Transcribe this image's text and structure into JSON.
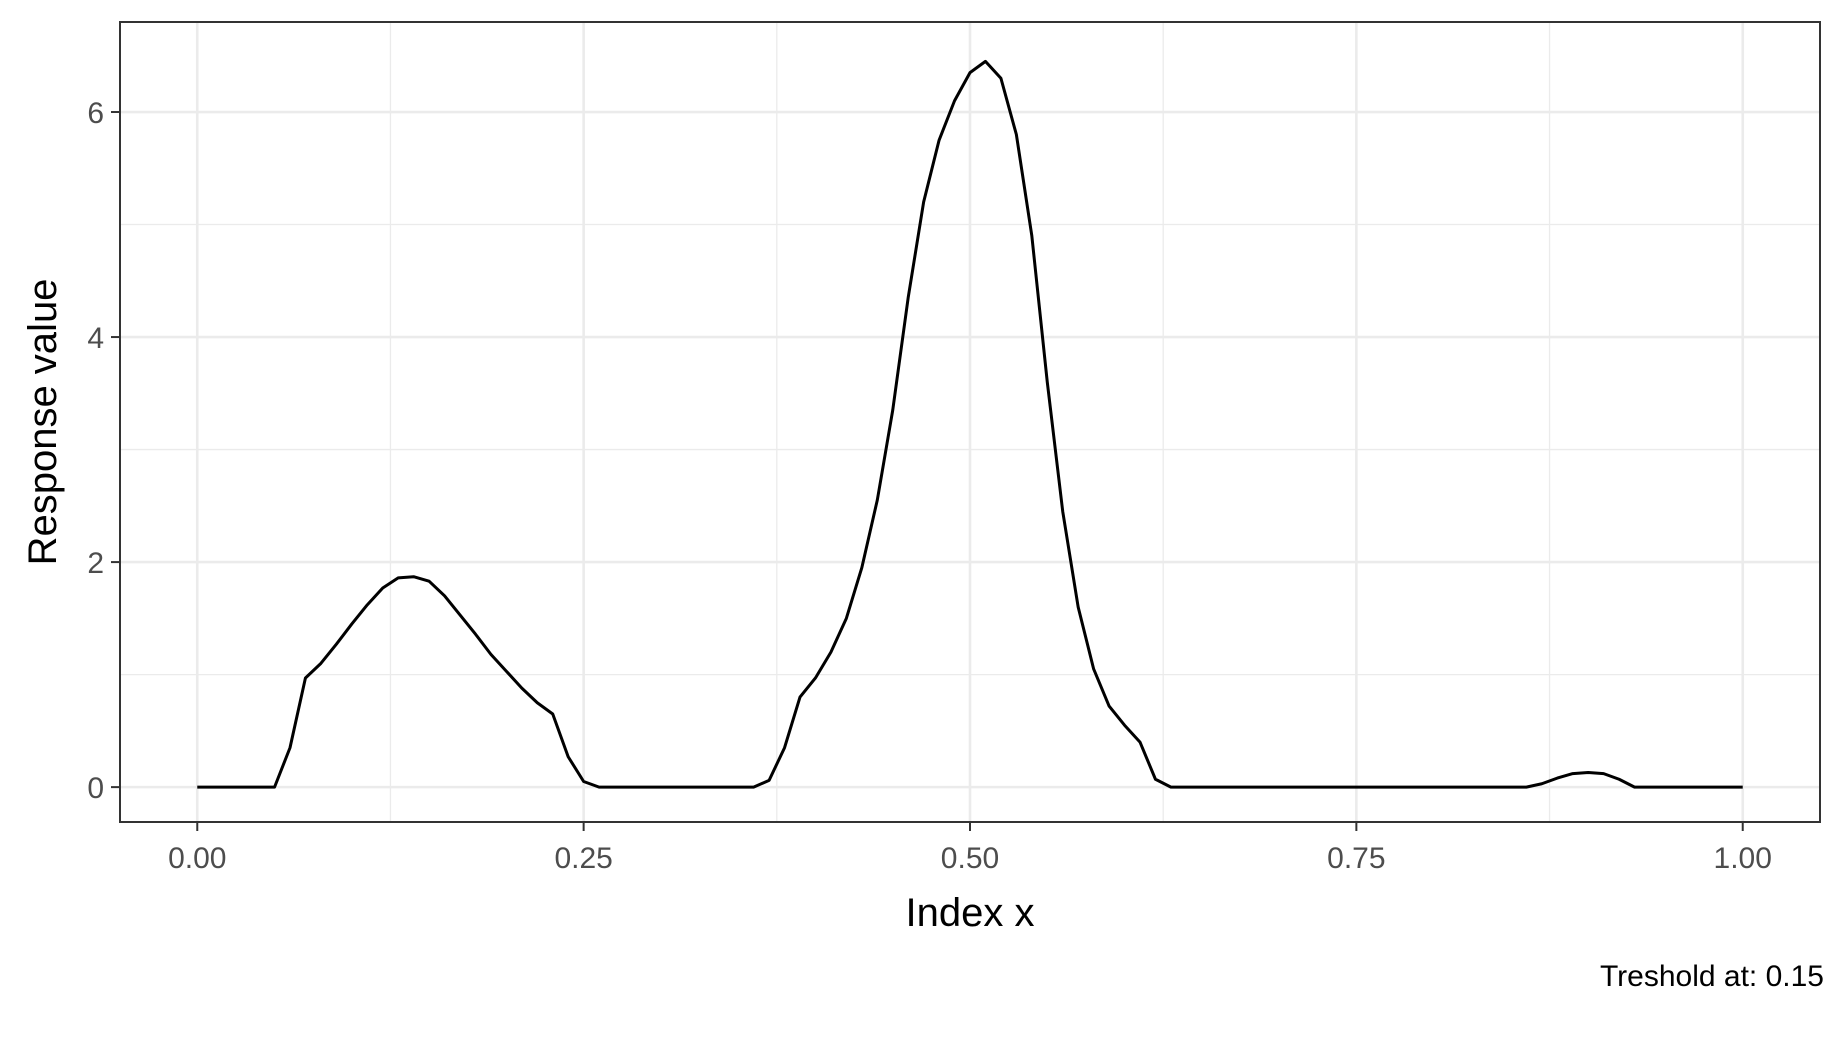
{
  "chart_data": {
    "type": "line",
    "title": "",
    "xlabel": "Index x",
    "ylabel": "Response value",
    "caption": "Treshold at: 0.15",
    "xlim": [
      -0.05,
      1.05
    ],
    "ylim": [
      -0.31,
      6.8
    ],
    "x_ticks": [
      0.0,
      0.25,
      0.5,
      0.75,
      1.0
    ],
    "x_tick_labels": [
      "0.00",
      "0.25",
      "0.50",
      "0.75",
      "1.00"
    ],
    "y_ticks": [
      0,
      2,
      4,
      6
    ],
    "y_tick_labels": [
      "0",
      "2",
      "4",
      "6"
    ],
    "grid": true,
    "legend": "none",
    "line_color": "#000000",
    "series": [
      {
        "x": [
          0.0,
          0.02,
          0.04,
          0.05,
          0.06,
          0.07,
          0.08,
          0.09,
          0.1,
          0.11,
          0.12,
          0.13,
          0.14,
          0.15,
          0.16,
          0.17,
          0.18,
          0.19,
          0.2,
          0.21,
          0.22,
          0.23,
          0.24,
          0.25,
          0.26,
          0.28,
          0.3,
          0.32,
          0.34,
          0.36,
          0.37,
          0.38,
          0.39,
          0.4,
          0.41,
          0.42,
          0.43,
          0.44,
          0.45,
          0.46,
          0.47,
          0.48,
          0.49,
          0.5,
          0.51,
          0.52,
          0.53,
          0.54,
          0.55,
          0.56,
          0.57,
          0.58,
          0.59,
          0.6,
          0.61,
          0.62,
          0.63,
          0.64,
          0.66,
          0.7,
          0.75,
          0.8,
          0.85,
          0.86,
          0.87,
          0.88,
          0.89,
          0.9,
          0.91,
          0.92,
          0.93,
          0.95,
          0.98,
          1.0
        ],
        "y": [
          0.0,
          0.0,
          0.0,
          0.0,
          0.35,
          0.97,
          1.1,
          1.27,
          1.45,
          1.62,
          1.77,
          1.86,
          1.87,
          1.83,
          1.7,
          1.53,
          1.36,
          1.18,
          1.03,
          0.88,
          0.75,
          0.65,
          0.27,
          0.05,
          0.0,
          0.0,
          0.0,
          0.0,
          0.0,
          0.0,
          0.06,
          0.35,
          0.8,
          0.97,
          1.2,
          1.5,
          1.95,
          2.55,
          3.35,
          4.35,
          5.2,
          5.75,
          6.1,
          6.35,
          6.45,
          6.3,
          5.8,
          4.9,
          3.6,
          2.45,
          1.6,
          1.05,
          0.72,
          0.55,
          0.4,
          0.07,
          0.0,
          0.0,
          0.0,
          0.0,
          0.0,
          0.0,
          0.0,
          0.0,
          0.03,
          0.08,
          0.12,
          0.13,
          0.12,
          0.07,
          0.0,
          0.0,
          0.0,
          0.0
        ]
      }
    ]
  }
}
